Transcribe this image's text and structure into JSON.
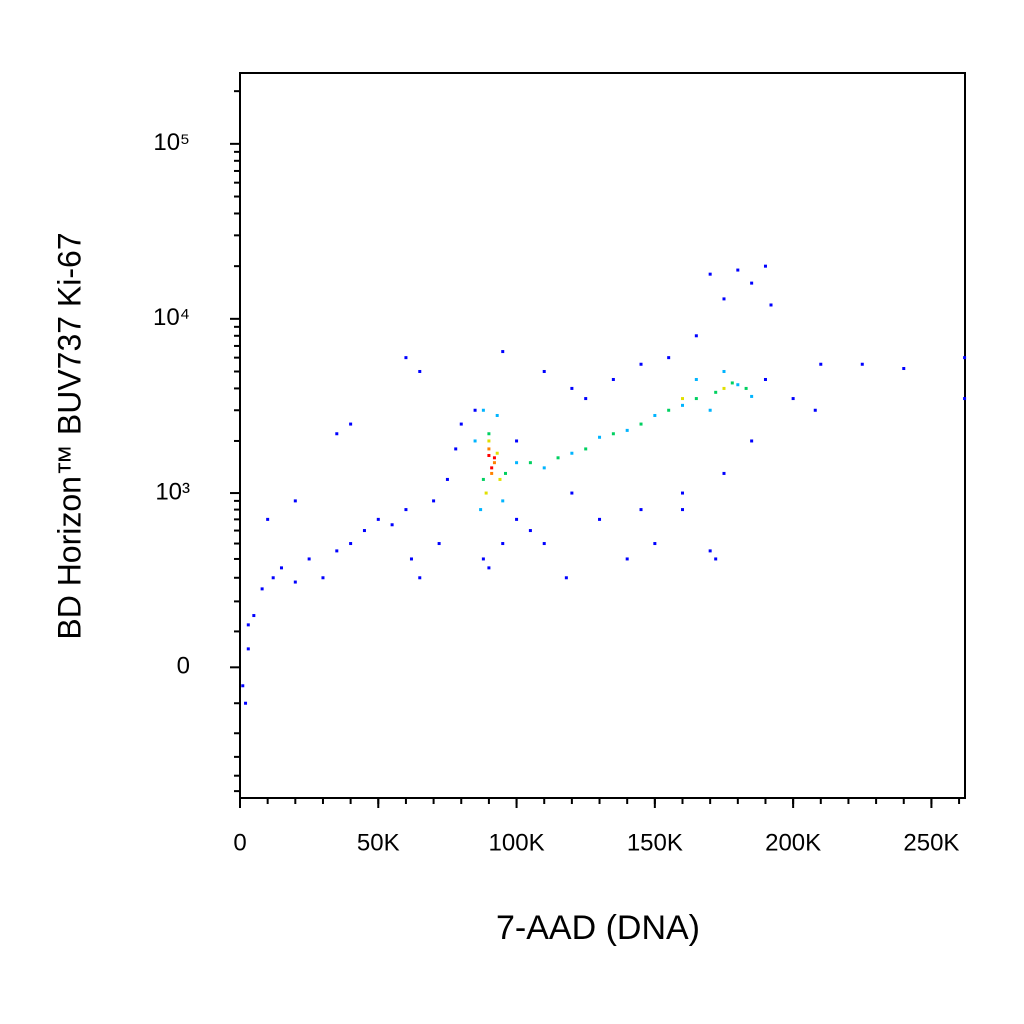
{
  "chart_data": {
    "type": "scatter",
    "x_label": "7-AAD (DNA)",
    "y_label": "BD Horizon™ BUV737 Ki-67",
    "xlim": [
      0,
      262144
    ],
    "ylim": [
      -551,
      254000
    ],
    "yscale": "biexponential",
    "xticks": [
      0,
      {
        "value": 50000,
        "label": "50K"
      },
      {
        "value": 100000,
        "label": "100K"
      },
      {
        "value": 150000,
        "label": "150K"
      },
      {
        "value": 200000,
        "label": "200K"
      },
      {
        "value": 250000,
        "label": "250K"
      }
    ],
    "yticks": [
      0,
      {
        "value": 1000,
        "label": "10³"
      },
      {
        "value": 10000,
        "label": "10⁴"
      },
      {
        "value": 100000,
        "label": "10⁵"
      }
    ],
    "grid": false,
    "series": [
      {
        "color": "#0000ff",
        "x": [
          5000,
          8000,
          3000,
          12000,
          15000,
          20000,
          25000,
          30000,
          35000,
          40000,
          45000,
          50000,
          55000,
          60000,
          62000,
          65000,
          70000,
          72000,
          75000,
          78000,
          80000,
          40000,
          35000,
          60000,
          65000,
          85000,
          88000,
          90000,
          95000,
          100000,
          105000,
          110000,
          118000,
          130000,
          140000,
          150000,
          160000,
          170000,
          172000,
          95000,
          110000,
          120000,
          125000,
          135000,
          145000,
          155000,
          165000,
          170000,
          175000,
          180000,
          185000,
          190000,
          192000,
          200000,
          208000,
          210000,
          225000,
          240000,
          262000,
          262000,
          190000,
          185000,
          175000,
          160000,
          145000,
          120000,
          100000,
          2000,
          1000,
          3000,
          10000,
          20000
        ],
        "y": [
          150,
          250,
          120,
          300,
          350,
          280,
          400,
          300,
          450,
          500,
          600,
          700,
          650,
          800,
          400,
          300,
          900,
          500,
          1200,
          1800,
          2500,
          2500,
          2200,
          6000,
          5000,
          3000,
          400,
          350,
          500,
          700,
          600,
          500,
          300,
          700,
          400,
          500,
          800,
          450,
          400,
          6500,
          5000,
          4000,
          3500,
          4500,
          5500,
          6000,
          8000,
          18000,
          13000,
          19000,
          16000,
          20000,
          12000,
          3500,
          3000,
          5500,
          5500,
          5200,
          6000,
          3500,
          4500,
          2000,
          1300,
          1000,
          800,
          1000,
          2000,
          -100,
          -50,
          50,
          700,
          900
        ]
      },
      {
        "color": "#00b4ff",
        "x": [
          85000,
          87000,
          95000,
          100000,
          110000,
          120000,
          130000,
          140000,
          150000,
          160000,
          170000,
          180000,
          185000,
          88000,
          93000,
          165000,
          175000
        ],
        "y": [
          2000,
          800,
          900,
          1500,
          1400,
          1700,
          2100,
          2300,
          2800,
          3200,
          3000,
          4200,
          3600,
          3000,
          2800,
          4500,
          5000
        ]
      },
      {
        "color": "#00d060",
        "x": [
          88000,
          96000,
          90000,
          105000,
          115000,
          125000,
          135000,
          145000,
          155000,
          165000,
          172000,
          178000,
          183000
        ],
        "y": [
          1200,
          1300,
          2200,
          1500,
          1600,
          1800,
          2200,
          2500,
          3000,
          3500,
          3800,
          4300,
          4000
        ]
      },
      {
        "color": "#e0e000",
        "x": [
          89000,
          93000,
          90000,
          94000,
          160000,
          175000
        ],
        "y": [
          1000,
          1700,
          2000,
          1200,
          3500,
          4000
        ]
      },
      {
        "color": "#ff8000",
        "x": [
          91000,
          90000,
          92000
        ],
        "y": [
          1300,
          1800,
          1500
        ]
      },
      {
        "color": "#ff0000",
        "x": [
          91000,
          92000,
          90000
        ],
        "y": [
          1400,
          1600,
          1650
        ]
      }
    ]
  }
}
